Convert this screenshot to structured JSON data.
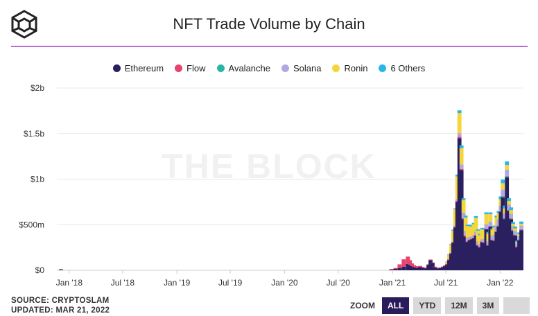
{
  "title": "NFT Trade Volume by Chain",
  "watermark": "THE BLOCK",
  "footer": {
    "source": "SOURCE: CRYPTOSLAM",
    "updated": "UPDATED: MAR 21, 2022"
  },
  "zoom": {
    "label": "ZOOM",
    "buttons": [
      "ALL",
      "YTD",
      "12M",
      "3M"
    ],
    "active": "ALL"
  },
  "colors": {
    "accent_rule": "#b86bd6",
    "Ethereum": "#2a2060",
    "Flow": "#e8426e",
    "Avalanche": "#2ab6a6",
    "Solana": "#b3a7e0",
    "Ronin": "#f5d53c",
    "6 Others": "#27b7e8"
  },
  "chart_data": {
    "type": "bar",
    "stacked": true,
    "grid": true,
    "legend_position": "top",
    "y_ticks": [
      "$0",
      "$500m",
      "$1b",
      "$1.5b",
      "$2b"
    ],
    "x_ticks": [
      "Jan '18",
      "Jul '18",
      "Jan '19",
      "Jul '19",
      "Jan '20",
      "Jul '20",
      "Jan '21",
      "Jul '21",
      "Jan '22"
    ],
    "ylim": [
      0,
      2000000000
    ],
    "xlim": [
      "2017-11-20",
      "2022-03-21"
    ],
    "legend": [
      "Ethereum",
      "Flow",
      "Avalanche",
      "Solana",
      "Ronin",
      "6 Others"
    ],
    "x": [
      "2017-12-04",
      "2020-12-28",
      "2021-01-11",
      "2021-01-25",
      "2021-02-08",
      "2021-02-22",
      "2021-03-01",
      "2021-03-08",
      "2021-03-15",
      "2021-03-22",
      "2021-03-29",
      "2021-04-05",
      "2021-04-12",
      "2021-04-19",
      "2021-04-26",
      "2021-05-03",
      "2021-05-10",
      "2021-05-17",
      "2021-05-24",
      "2021-05-31",
      "2021-06-07",
      "2021-06-14",
      "2021-06-21",
      "2021-06-28",
      "2021-07-05",
      "2021-07-12",
      "2021-07-19",
      "2021-07-26",
      "2021-08-02",
      "2021-08-09",
      "2021-08-16",
      "2021-08-23",
      "2021-08-30",
      "2021-09-06",
      "2021-09-13",
      "2021-09-20",
      "2021-09-27",
      "2021-10-04",
      "2021-10-11",
      "2021-10-18",
      "2021-10-25",
      "2021-11-01",
      "2021-11-08",
      "2021-11-15",
      "2021-11-22",
      "2021-11-29",
      "2021-12-06",
      "2021-12-13",
      "2021-12-20",
      "2021-12-27",
      "2022-01-03",
      "2022-01-10",
      "2022-01-17",
      "2022-01-24",
      "2022-01-31",
      "2022-02-07",
      "2022-02-14",
      "2022-02-21",
      "2022-02-28",
      "2022-03-07",
      "2022-03-14"
    ],
    "series": [
      {
        "name": "Ethereum",
        "values": [
          10000000,
          8000000,
          15000000,
          25000000,
          40000000,
          70000000,
          60000000,
          45000000,
          35000000,
          30000000,
          25000000,
          40000000,
          30000000,
          25000000,
          20000000,
          60000000,
          110000000,
          80000000,
          35000000,
          25000000,
          20000000,
          25000000,
          35000000,
          45000000,
          60000000,
          110000000,
          180000000,
          300000000,
          470000000,
          750000000,
          1450000000,
          1100000000,
          560000000,
          370000000,
          310000000,
          330000000,
          340000000,
          350000000,
          380000000,
          270000000,
          250000000,
          310000000,
          300000000,
          450000000,
          270000000,
          480000000,
          330000000,
          320000000,
          420000000,
          480000000,
          640000000,
          800000000,
          560000000,
          1020000000,
          650000000,
          560000000,
          430000000,
          380000000,
          250000000,
          330000000,
          440000000
        ]
      },
      {
        "name": "Flow",
        "values": [
          0,
          5000000,
          10000000,
          40000000,
          80000000,
          80000000,
          50000000,
          30000000,
          20000000,
          15000000,
          10000000,
          8000000,
          5000000,
          5000000,
          5000000,
          5000000,
          8000000,
          5000000,
          5000000,
          5000000,
          5000000,
          5000000,
          5000000,
          8000000,
          10000000,
          10000000,
          10000000,
          10000000,
          10000000,
          10000000,
          15000000,
          10000000,
          10000000,
          10000000,
          5000000,
          5000000,
          5000000,
          5000000,
          5000000,
          5000000,
          5000000,
          5000000,
          5000000,
          5000000,
          5000000,
          5000000,
          5000000,
          5000000,
          5000000,
          5000000,
          5000000,
          5000000,
          5000000,
          5000000,
          5000000,
          5000000,
          5000000,
          5000000,
          5000000,
          5000000,
          5000000
        ]
      },
      {
        "name": "Avalanche",
        "values": [
          0,
          0,
          0,
          0,
          0,
          0,
          0,
          0,
          0,
          0,
          0,
          0,
          0,
          0,
          0,
          0,
          0,
          0,
          0,
          0,
          0,
          0,
          0,
          0,
          0,
          0,
          0,
          0,
          0,
          0,
          0,
          0,
          0,
          0,
          0,
          0,
          0,
          0,
          0,
          0,
          0,
          0,
          0,
          0,
          0,
          0,
          0,
          5000000,
          5000000,
          5000000,
          5000000,
          10000000,
          5000000,
          10000000,
          5000000,
          5000000,
          5000000,
          5000000,
          5000000,
          5000000,
          5000000
        ]
      },
      {
        "name": "Solana",
        "values": [
          0,
          0,
          0,
          0,
          0,
          0,
          0,
          0,
          0,
          0,
          0,
          0,
          0,
          0,
          0,
          0,
          0,
          0,
          0,
          0,
          0,
          0,
          0,
          0,
          0,
          0,
          5000000,
          5000000,
          10000000,
          20000000,
          40000000,
          50000000,
          60000000,
          50000000,
          40000000,
          30000000,
          25000000,
          30000000,
          40000000,
          40000000,
          30000000,
          25000000,
          40000000,
          50000000,
          40000000,
          50000000,
          40000000,
          60000000,
          60000000,
          70000000,
          60000000,
          70000000,
          50000000,
          70000000,
          60000000,
          50000000,
          40000000,
          40000000,
          30000000,
          35000000,
          40000000
        ]
      },
      {
        "name": "Ronin",
        "values": [
          0,
          0,
          0,
          0,
          0,
          0,
          0,
          0,
          0,
          0,
          0,
          0,
          0,
          0,
          0,
          0,
          0,
          0,
          0,
          0,
          0,
          0,
          0,
          0,
          20000000,
          50000000,
          90000000,
          120000000,
          180000000,
          250000000,
          220000000,
          180000000,
          140000000,
          150000000,
          130000000,
          120000000,
          110000000,
          120000000,
          150000000,
          120000000,
          100000000,
          110000000,
          100000000,
          110000000,
          90000000,
          80000000,
          70000000,
          80000000,
          90000000,
          70000000,
          70000000,
          70000000,
          60000000,
          50000000,
          40000000,
          40000000,
          30000000,
          30000000,
          20000000,
          20000000,
          20000000
        ]
      },
      {
        "name": "6 Others",
        "values": [
          0,
          0,
          0,
          0,
          0,
          0,
          0,
          0,
          0,
          0,
          0,
          0,
          0,
          0,
          0,
          0,
          0,
          0,
          0,
          0,
          0,
          0,
          0,
          0,
          5000000,
          5000000,
          5000000,
          10000000,
          10000000,
          20000000,
          30000000,
          30000000,
          20000000,
          20000000,
          15000000,
          15000000,
          15000000,
          15000000,
          20000000,
          15000000,
          15000000,
          15000000,
          15000000,
          20000000,
          15000000,
          20000000,
          15000000,
          20000000,
          20000000,
          20000000,
          30000000,
          40000000,
          30000000,
          40000000,
          30000000,
          30000000,
          20000000,
          20000000,
          15000000,
          20000000,
          25000000
        ]
      }
    ]
  }
}
